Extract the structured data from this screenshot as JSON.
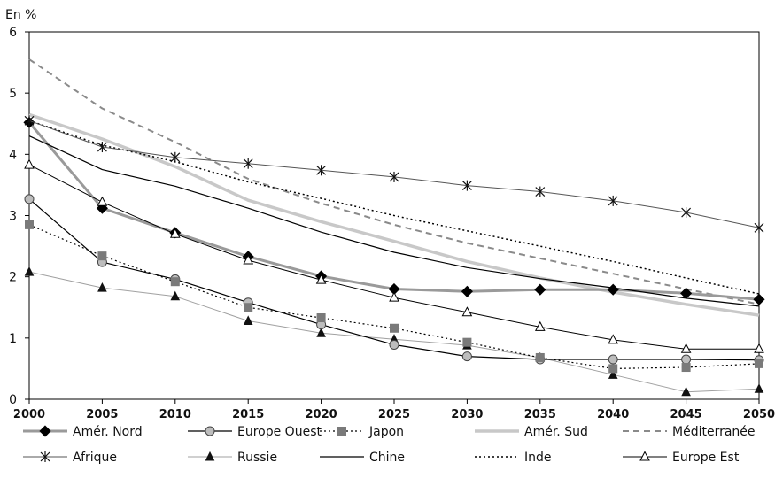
{
  "chart_data": {
    "type": "line",
    "title": "",
    "ylabel": "En %",
    "xlabel": "",
    "x": [
      2000,
      2005,
      2010,
      2015,
      2020,
      2025,
      2030,
      2035,
      2040,
      2045,
      2050
    ],
    "xlim": [
      2000,
      2050
    ],
    "ylim": [
      0,
      6
    ],
    "yticks": [
      0,
      1,
      2,
      3,
      4,
      5,
      6
    ],
    "grid": false,
    "legend_position": "bottom",
    "series": [
      {
        "name": "Amér. Nord",
        "color": "#9a9a9a",
        "line": "solid",
        "width": 3,
        "marker": "diamond",
        "marker_color": "#000000",
        "values": [
          4.52,
          3.12,
          2.72,
          2.33,
          2.01,
          1.8,
          1.76,
          1.79,
          1.79,
          1.73,
          1.63
        ]
      },
      {
        "name": "Europe Ouest",
        "color": "#000000",
        "line": "solid",
        "width": 1.2,
        "marker": "circle",
        "marker_color": "#bdbdbd",
        "values": [
          3.27,
          2.24,
          1.96,
          1.58,
          1.22,
          0.89,
          0.7,
          0.65,
          0.65,
          0.65,
          0.64
        ]
      },
      {
        "name": "Japon",
        "color": "#000000",
        "line": "dotted",
        "width": 1.2,
        "marker": "square",
        "marker_color": "#7a7a7a",
        "values": [
          2.85,
          2.34,
          1.92,
          1.5,
          1.33,
          1.16,
          0.93,
          0.68,
          0.5,
          0.52,
          0.58
        ]
      },
      {
        "name": "Amér. Sud",
        "color": "#c8c8c8",
        "line": "solid",
        "width": 3.5,
        "marker": "none",
        "marker_color": "",
        "values": [
          4.65,
          4.25,
          3.8,
          3.25,
          2.9,
          2.58,
          2.25,
          1.98,
          1.75,
          1.55,
          1.37
        ]
      },
      {
        "name": "Méditerranée",
        "color": "#8a8a8a",
        "line": "dashed",
        "width": 2,
        "marker": "none",
        "marker_color": "",
        "values": [
          5.55,
          4.75,
          4.2,
          3.6,
          3.2,
          2.85,
          2.55,
          2.3,
          2.05,
          1.8,
          1.55
        ]
      },
      {
        "name": "Afrique",
        "color": "#555555",
        "line": "solid",
        "width": 1,
        "marker": "star",
        "marker_color": "#111111",
        "values": [
          4.55,
          4.12,
          3.95,
          3.85,
          3.74,
          3.63,
          3.49,
          3.39,
          3.24,
          3.05,
          2.8
        ]
      },
      {
        "name": "Russie",
        "color": "#a0a0a0",
        "line": "solid",
        "width": 1,
        "marker": "triangle-filled",
        "marker_color": "#111111",
        "values": [
          2.08,
          1.82,
          1.68,
          1.28,
          1.08,
          0.98,
          0.88,
          0.68,
          0.4,
          0.12,
          0.17
        ]
      },
      {
        "name": "Chine",
        "color": "#000000",
        "line": "solid",
        "width": 1.2,
        "marker": "none",
        "marker_color": "",
        "values": [
          4.3,
          3.75,
          3.48,
          3.12,
          2.73,
          2.4,
          2.15,
          1.97,
          1.82,
          1.65,
          1.52
        ]
      },
      {
        "name": "Inde",
        "color": "#000000",
        "line": "dotted",
        "width": 1.5,
        "marker": "none",
        "marker_color": "",
        "values": [
          4.55,
          4.15,
          3.88,
          3.55,
          3.28,
          3.0,
          2.75,
          2.5,
          2.25,
          1.98,
          1.72
        ]
      },
      {
        "name": "Europe Est",
        "color": "#000000",
        "line": "solid",
        "width": 1,
        "marker": "triangle-open",
        "marker_color": "#ffffff",
        "values": [
          3.83,
          3.22,
          2.7,
          2.27,
          1.95,
          1.66,
          1.42,
          1.18,
          0.97,
          0.82,
          0.82
        ]
      }
    ]
  }
}
